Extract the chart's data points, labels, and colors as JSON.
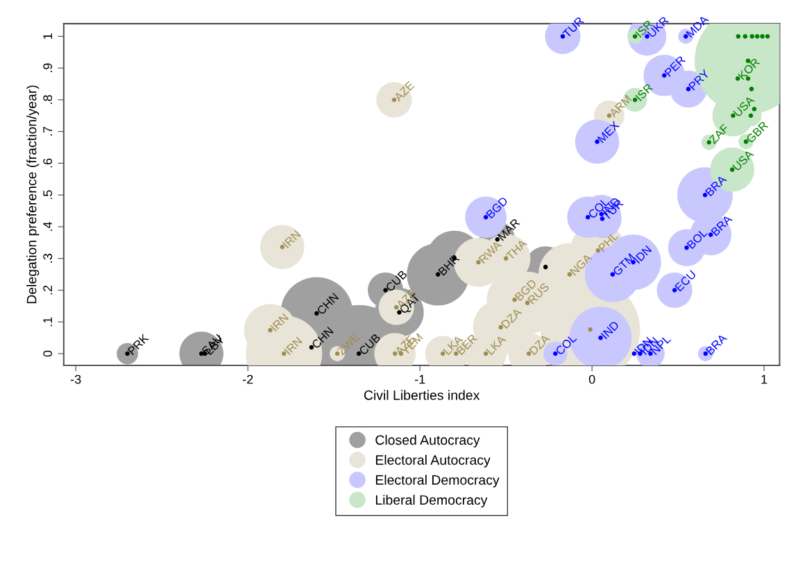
{
  "chart_data": {
    "type": "bubble",
    "xlabel": "Civil Liberties index",
    "ylabel": "Delegation preference (fraction/year)",
    "xlim": [
      -3.07,
      1.09
    ],
    "ylim": [
      -0.037,
      1.04
    ],
    "xticks": [
      -3,
      -2,
      -1,
      0,
      1
    ],
    "yticks": [
      0,
      {
        "value": 0.1,
        "label": ".1"
      },
      {
        "value": 0.2,
        "label": ".2"
      },
      {
        "value": 0.3,
        "label": ".3"
      },
      {
        "value": 0.4,
        "label": ".4"
      },
      {
        "value": 0.5,
        "label": ".5"
      },
      {
        "value": 0.6,
        "label": ".6"
      },
      {
        "value": 0.7,
        "label": ".7"
      },
      {
        "value": 0.8,
        "label": ".8"
      },
      {
        "value": 0.9,
        "label": ".9"
      },
      1
    ],
    "grid": false,
    "legend": "bottom",
    "series": [
      {
        "name": "Closed Autocracy",
        "color": "#a0a0a0",
        "x": [
          -2.7,
          -2.27,
          -1.6,
          -1.355,
          -1.2,
          -1.12,
          -0.895,
          -0.8,
          -0.55,
          -0.27
        ],
        "values": [
          0,
          0,
          0.127,
          0,
          0.2,
          0.13,
          0.25,
          0.3,
          0.36,
          0.273
        ],
        "sizes": [
          0.04,
          0.17,
          0.46,
          0.83,
          0.11,
          0.21,
          0.34,
          0.27,
          0.11,
          0.15
        ]
      },
      {
        "name": "Electoral Autocracy",
        "color": "#e8e4d8",
        "x": [
          -1.15,
          -1.8,
          -1.87,
          -1.79,
          -1.48,
          -1.137,
          -1.145,
          -0.867,
          -0.79,
          -0.617,
          -0.53,
          -0.45,
          -0.375,
          -0.66,
          -0.5,
          -0.367,
          -0.13,
          0.035,
          -0.01,
          0.1
        ],
        "values": [
          0.8,
          0.336,
          0.074,
          0,
          0,
          0.146,
          0,
          0,
          0,
          0,
          0.083,
          0.17,
          0.16,
          0.288,
          0.3,
          0,
          0.25,
          0.325,
          0.076,
          0.75
        ],
        "sizes": [
          0.11,
          0.17,
          0.24,
          0.51,
          0.02,
          0.11,
          0.15,
          0.11,
          0.07,
          0.15,
          0.27,
          0.27,
          0.34,
          0.21,
          0.21,
          0.15,
          0.34,
          0.27,
          0.87,
          0.08
        ]
      },
      {
        "name": "Electoral Democracy",
        "color": "#c8c8ff",
        "x": [
          -0.17,
          0.32,
          0.545,
          0.42,
          0.56,
          0.03,
          -0.617,
          -0.024,
          0.055,
          0.06,
          0.12,
          0.24,
          0.48,
          0.55,
          0.69,
          0.657,
          -0.213,
          0.05,
          0.34,
          0.66
        ],
        "values": [
          1,
          1,
          1,
          0.877,
          0.834,
          0.668,
          0.43,
          0.43,
          0.44,
          0.425,
          0.25,
          0.288,
          0.2,
          0.334,
          0.375,
          0.5,
          0,
          0.05,
          0,
          0
        ],
        "sizes": [
          0.11,
          0.13,
          0.02,
          0.15,
          0.12,
          0.17,
          0.15,
          0.15,
          0.13,
          0.13,
          0.27,
          0.27,
          0.11,
          0.12,
          0.15,
          0.27,
          0.05,
          0.34,
          0.07,
          0.02
        ]
      },
      {
        "name": "Liberal Democracy",
        "color": "#c8e6c8",
        "x": [
          0.25,
          0.25,
          0.68,
          0.815,
          0.895,
          0.82,
          0.907,
          0.923
        ],
        "values": [
          1,
          0.8,
          0.666,
          0.58,
          0.668,
          0.75,
          0.923,
          0.75
        ],
        "sizes": [
          0.02,
          0.05,
          0.02,
          0.17,
          0.02,
          0.15,
          1,
          0.04
        ]
      },
      {
        "type": "scatter",
        "marker": "circle",
        "color": "#000000",
        "x": [
          -2.7,
          -2.27,
          -2.25,
          -1.6,
          -1.63,
          -1.355,
          -1.2,
          -1.12,
          -0.895,
          -0.8,
          -0.55,
          -0.27
        ],
        "values": [
          0,
          0,
          0,
          0.127,
          0.02,
          0,
          0.2,
          0.13,
          0.25,
          0.3,
          0.36,
          0.273
        ]
      },
      {
        "type": "scatter",
        "marker": "circle",
        "color": "#a08c50",
        "x": [
          -1.15,
          -1.8,
          -1.87,
          -1.79,
          -1.48,
          -1.137,
          -1.145,
          -1.11,
          -0.867,
          -0.79,
          -0.617,
          -0.53,
          -0.45,
          -0.375,
          -0.66,
          -0.5,
          -0.367,
          -0.13,
          0.035,
          -0.01,
          0.1
        ],
        "values": [
          0.8,
          0.336,
          0.074,
          0,
          0,
          0.146,
          0,
          0,
          0,
          0,
          0,
          0.083,
          0.17,
          0.16,
          0.288,
          0.3,
          0,
          0.25,
          0.325,
          0.076,
          0.75
        ]
      },
      {
        "type": "scatter",
        "marker": "circle",
        "color": "#0000ff",
        "x": [
          -0.17,
          0.32,
          0.545,
          0.42,
          0.56,
          0.03,
          -0.617,
          -0.024,
          0.055,
          0.06,
          0.12,
          0.24,
          0.48,
          0.55,
          0.69,
          0.657,
          -0.213,
          0.05,
          0.245,
          0.28,
          0.34,
          0.66
        ],
        "values": [
          1,
          1,
          1,
          0.877,
          0.834,
          0.668,
          0.43,
          0.43,
          0.44,
          0.425,
          0.25,
          0.288,
          0.2,
          0.334,
          0.375,
          0.5,
          0,
          0.05,
          0,
          0,
          0,
          0
        ]
      },
      {
        "type": "scatter",
        "marker": "circle",
        "color": "#008000",
        "x": [
          0.25,
          0.25,
          0.68,
          0.815,
          0.895,
          0.82,
          0.907,
          0.847,
          0.907,
          0.927,
          0.943,
          0.923,
          0.85,
          0.89,
          0.93,
          0.96,
          0.99,
          1.02
        ],
        "values": [
          1,
          0.8,
          0.666,
          0.58,
          0.668,
          0.75,
          0.923,
          0.867,
          0.867,
          0.834,
          0.771,
          0.75,
          1,
          1,
          1,
          1,
          1,
          1
        ]
      }
    ],
    "annotations": [
      {
        "text": "PRK",
        "x": -2.7,
        "y": 0
      },
      {
        "text": "SAU",
        "x": -2.27,
        "y": 0
      },
      {
        "text": "LBY",
        "x": -2.25,
        "y": 0
      },
      {
        "text": "CHN",
        "x": -1.6,
        "y": 0.127
      },
      {
        "text": "CHN",
        "x": -1.63,
        "y": 0.02
      },
      {
        "text": "CUB",
        "x": -1.355,
        "y": 0
      },
      {
        "text": "CUB",
        "x": -1.2,
        "y": 0.2
      },
      {
        "text": "QAT",
        "x": -1.12,
        "y": 0.13
      },
      {
        "text": "BHR",
        "x": -0.895,
        "y": 0.25
      },
      {
        "text": "MAR",
        "x": -0.55,
        "y": 0.36
      },
      {
        "text": "AZE",
        "x": -1.15,
        "y": 0.8
      },
      {
        "text": "IRN",
        "x": -1.8,
        "y": 0.336
      },
      {
        "text": "IRN",
        "x": -1.87,
        "y": 0.074
      },
      {
        "text": "IRN",
        "x": -1.79,
        "y": 0
      },
      {
        "text": "ZWE",
        "x": -1.48,
        "y": 0
      },
      {
        "text": "AZE",
        "x": -1.137,
        "y": 0.146
      },
      {
        "text": "AZE",
        "x": -1.145,
        "y": 0
      },
      {
        "text": "YEM",
        "x": -1.11,
        "y": 0
      },
      {
        "text": "LKA",
        "x": -0.867,
        "y": 0
      },
      {
        "text": "BER",
        "x": -0.79,
        "y": 0
      },
      {
        "text": "LKA",
        "x": -0.617,
        "y": 0
      },
      {
        "text": "DZA",
        "x": -0.53,
        "y": 0.083
      },
      {
        "text": "BGD",
        "x": -0.45,
        "y": 0.17
      },
      {
        "text": "RUS",
        "x": -0.375,
        "y": 0.16
      },
      {
        "text": "RWA",
        "x": -0.66,
        "y": 0.288
      },
      {
        "text": "THA",
        "x": -0.5,
        "y": 0.3
      },
      {
        "text": "DZA",
        "x": -0.367,
        "y": 0
      },
      {
        "text": "NGA",
        "x": -0.13,
        "y": 0.25
      },
      {
        "text": "PHL",
        "x": 0.035,
        "y": 0.325
      },
      {
        "text": "ARM",
        "x": 0.1,
        "y": 0.75
      },
      {
        "text": "TUR",
        "x": -0.17,
        "y": 1
      },
      {
        "text": "UKR",
        "x": 0.32,
        "y": 1
      },
      {
        "text": "MDA",
        "x": 0.545,
        "y": 1
      },
      {
        "text": "PER",
        "x": 0.42,
        "y": 0.877
      },
      {
        "text": "PRY",
        "x": 0.56,
        "y": 0.834
      },
      {
        "text": "MEX",
        "x": 0.03,
        "y": 0.668
      },
      {
        "text": "BGD",
        "x": -0.617,
        "y": 0.43
      },
      {
        "text": "COL",
        "x": -0.024,
        "y": 0.43
      },
      {
        "text": "IND",
        "x": 0.055,
        "y": 0.44
      },
      {
        "text": "TUR",
        "x": 0.06,
        "y": 0.425
      },
      {
        "text": "GTM",
        "x": 0.12,
        "y": 0.25
      },
      {
        "text": "IDN",
        "x": 0.24,
        "y": 0.288
      },
      {
        "text": "ECU",
        "x": 0.48,
        "y": 0.2
      },
      {
        "text": "BOL",
        "x": 0.55,
        "y": 0.334
      },
      {
        "text": "BRA",
        "x": 0.69,
        "y": 0.375
      },
      {
        "text": "BRA",
        "x": 0.657,
        "y": 0.5
      },
      {
        "text": "COL",
        "x": -0.213,
        "y": 0
      },
      {
        "text": "IND",
        "x": 0.05,
        "y": 0.05
      },
      {
        "text": "IDN",
        "x": 0.245,
        "y": 0
      },
      {
        "text": "IDN",
        "x": 0.28,
        "y": 0
      },
      {
        "text": "NPL",
        "x": 0.34,
        "y": 0
      },
      {
        "text": "BRA",
        "x": 0.66,
        "y": 0
      },
      {
        "text": "ISR",
        "x": 0.25,
        "y": 1
      },
      {
        "text": "ISR",
        "x": 0.25,
        "y": 0.8
      },
      {
        "text": "ZAF",
        "x": 0.68,
        "y": 0.666
      },
      {
        "text": "USA",
        "x": 0.815,
        "y": 0.58
      },
      {
        "text": "GBR",
        "x": 0.895,
        "y": 0.668
      },
      {
        "text": "USA",
        "x": 0.82,
        "y": 0.75
      },
      {
        "text": "KOR",
        "x": 0.847,
        "y": 0.867
      }
    ]
  }
}
